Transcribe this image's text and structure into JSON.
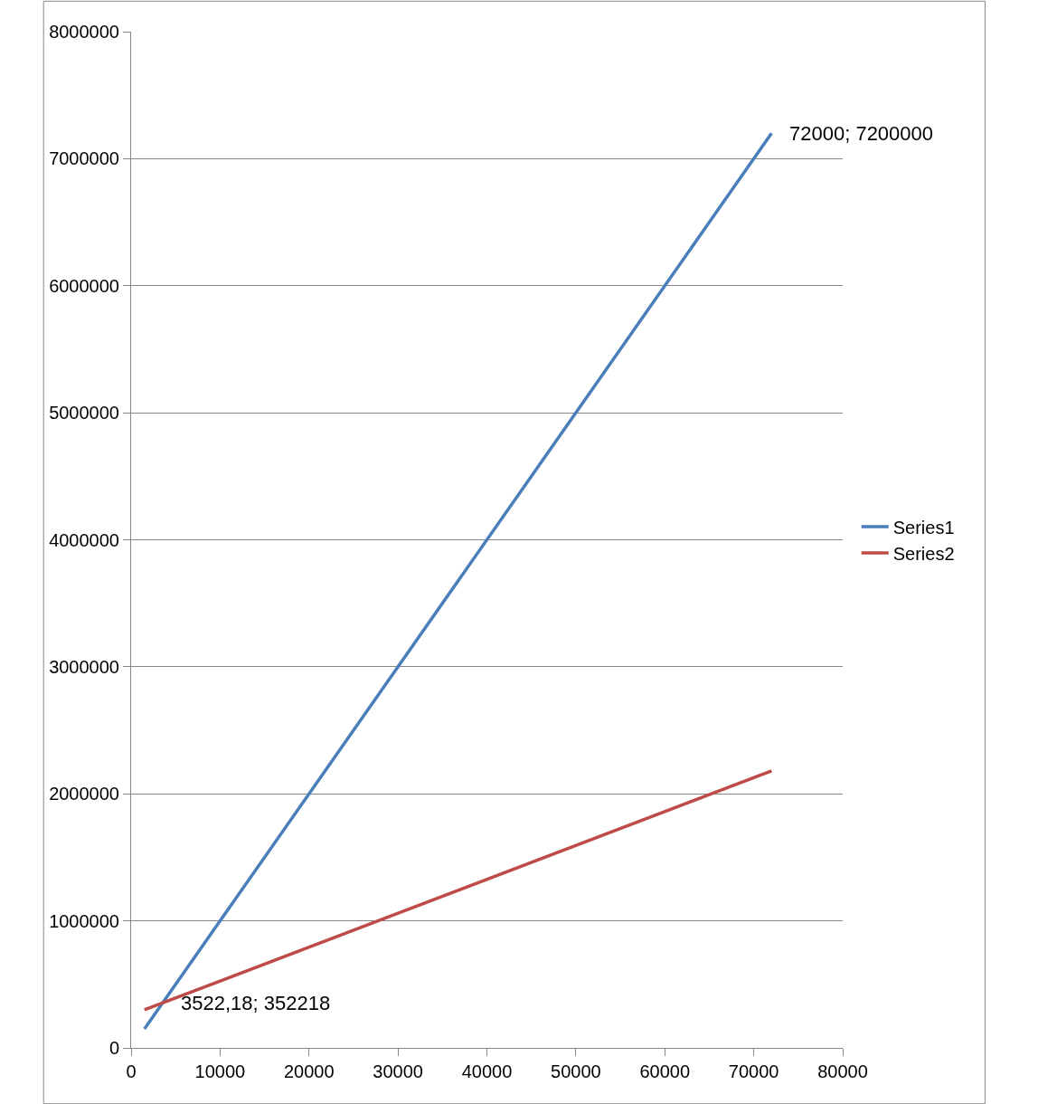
{
  "chart_data": {
    "type": "line",
    "xlim": [
      0,
      80000
    ],
    "xticks": [
      0,
      10000,
      20000,
      30000,
      40000,
      50000,
      60000,
      70000,
      80000
    ],
    "ylim": [
      0,
      8000000
    ],
    "yticks": [
      0,
      1000000,
      2000000,
      3000000,
      4000000,
      5000000,
      6000000,
      7000000,
      8000000
    ],
    "grid": "y",
    "legend": "right",
    "marker": "none",
    "line_style": "solid",
    "x": [
      1500,
      72000
    ],
    "series": [
      {
        "name": "Series1",
        "color": "#4a7ebb",
        "values": [
          150000,
          7200000
        ]
      },
      {
        "name": "Series2",
        "color": "#be4b48",
        "values": [
          300000,
          2180000
        ]
      }
    ],
    "annotations": [
      {
        "text": "72000; 7200000",
        "x": 72000,
        "y": 7200000
      },
      {
        "text": "3522,18; 352218",
        "x": 3522.18,
        "y": 352218
      }
    ]
  }
}
